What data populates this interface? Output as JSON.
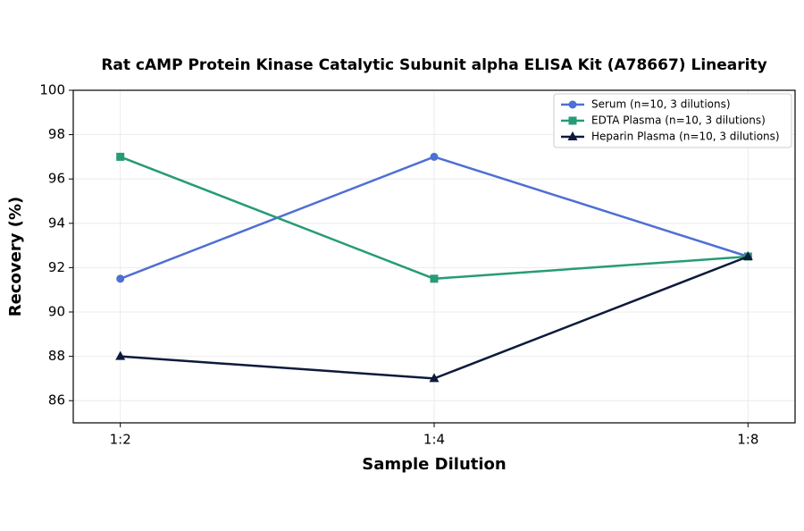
{
  "chart_data": {
    "type": "line",
    "title": "Rat cAMP Protein Kinase Catalytic Subunit alpha ELISA Kit (A78667) Linearity",
    "xlabel": "Sample Dilution",
    "ylabel": "Recovery (%)",
    "categories": [
      "1:2",
      "1:4",
      "1:8"
    ],
    "series": [
      {
        "name": "Serum (n=10, 3 dilutions)",
        "color": "#4e6fd3",
        "marker": "circle",
        "values": [
          91.5,
          97,
          92.5
        ]
      },
      {
        "name": "EDTA Plasma (n=10, 3 dilutions)",
        "color": "#279b77",
        "marker": "square",
        "values": [
          97,
          91.5,
          92.5
        ]
      },
      {
        "name": "Heparin Plasma (n=10, 3 dilutions)",
        "color": "#0e1a3c",
        "marker": "triangle",
        "values": [
          88,
          87,
          92.5
        ]
      }
    ],
    "ylim": [
      85,
      100
    ],
    "yticks": [
      86,
      88,
      90,
      92,
      94,
      96,
      98,
      100
    ],
    "grid": true,
    "legend": "upper right"
  }
}
